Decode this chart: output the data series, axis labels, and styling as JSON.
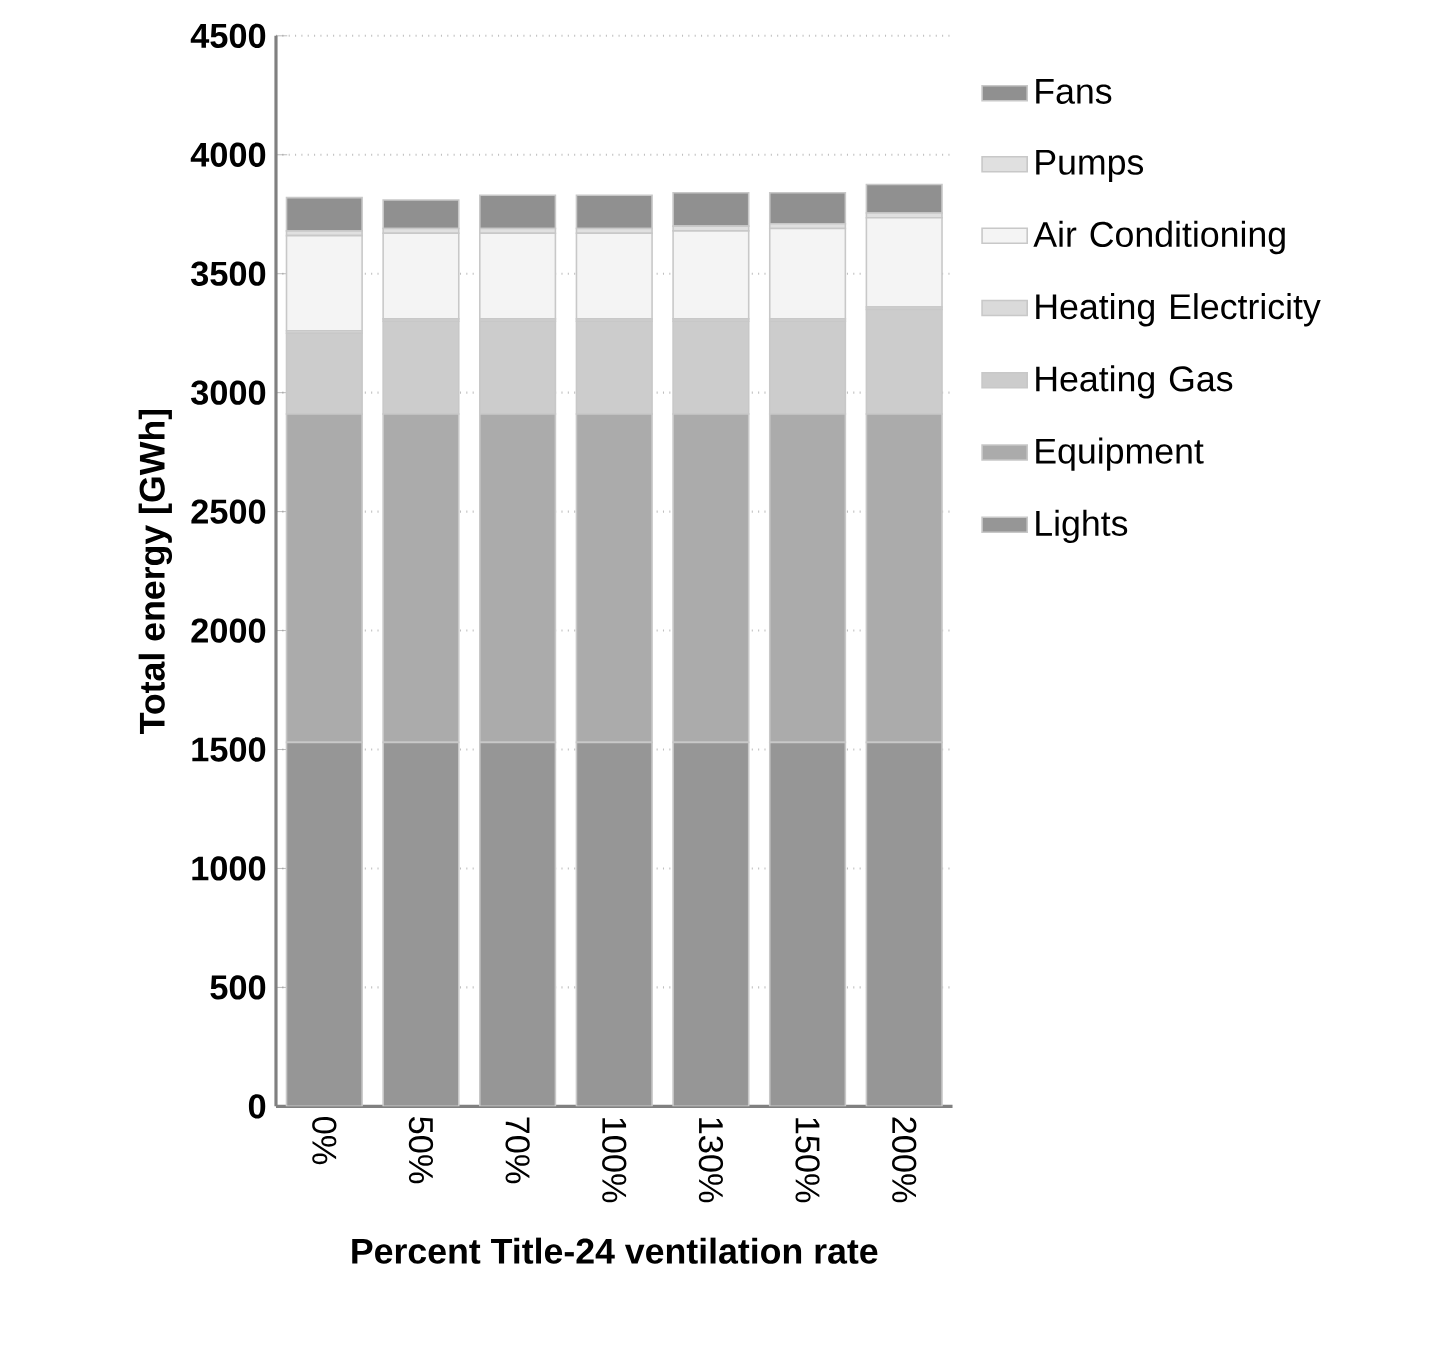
{
  "chart_data": {
    "type": "bar",
    "stacked": true,
    "xlabel": "Percent Title-24 ventilation rate",
    "ylabel": "Total energy [GWh]",
    "categories": [
      "0%",
      "50%",
      "70%",
      "100%",
      "130%",
      "150%",
      "200%"
    ],
    "ylim": [
      0,
      4500
    ],
    "yticks": [
      0,
      500,
      1000,
      1500,
      2000,
      2500,
      3000,
      3500,
      4000,
      4500
    ],
    "grid": "y",
    "legend": "right",
    "series": [
      {
        "name": "Lights",
        "color": "#969696",
        "values": [
          1530,
          1530,
          1530,
          1530,
          1530,
          1530,
          1530
        ]
      },
      {
        "name": "Equipment",
        "color": "#ababab",
        "values": [
          1380,
          1380,
          1380,
          1380,
          1380,
          1380,
          1380
        ]
      },
      {
        "name": "Heating Gas",
        "color": "#cccccc",
        "values": [
          340,
          390,
          390,
          390,
          390,
          390,
          440
        ]
      },
      {
        "name": "Heating Electricity",
        "color": "#dadada",
        "values": [
          10,
          10,
          10,
          10,
          10,
          10,
          10
        ]
      },
      {
        "name": "Air Conditioning",
        "color": "#f4f4f4",
        "values": [
          400,
          360,
          360,
          360,
          370,
          380,
          375
        ]
      },
      {
        "name": "Pumps",
        "color": "#e0e0e0",
        "values": [
          20,
          20,
          20,
          20,
          20,
          20,
          20
        ]
      },
      {
        "name": "Fans",
        "color": "#909090",
        "values": [
          140,
          120,
          140,
          140,
          140,
          130,
          120
        ]
      }
    ]
  }
}
